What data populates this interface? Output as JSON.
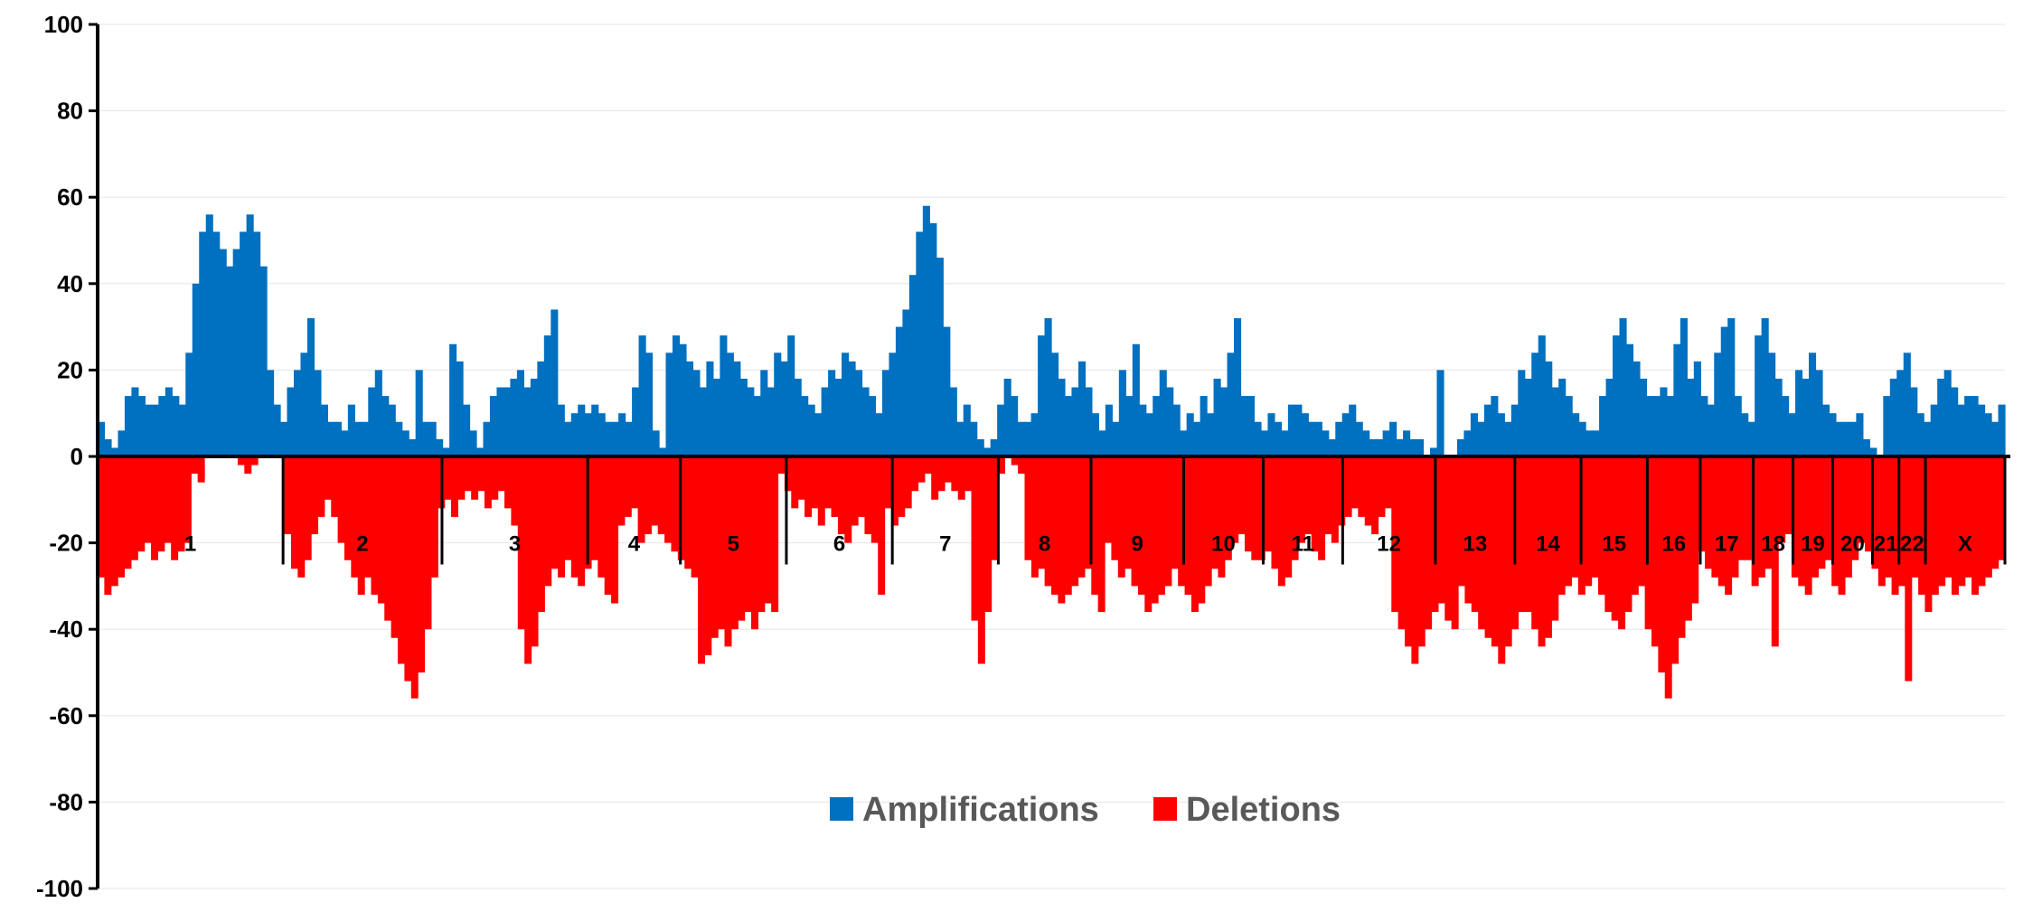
{
  "chart_data": {
    "type": "bar",
    "title": "",
    "xlabel": "",
    "ylabel": "",
    "ylim": [
      -100,
      100
    ],
    "yticks": [
      100,
      80,
      60,
      40,
      20,
      0,
      -20,
      -40,
      -60,
      -80,
      -100
    ],
    "grid": true,
    "legend_position": "bottom-center",
    "chromosomes": [
      "1",
      "2",
      "3",
      "4",
      "5",
      "6",
      "7",
      "8",
      "9",
      "10",
      "11",
      "12",
      "13",
      "14",
      "15",
      "16",
      "17",
      "18",
      "19",
      "20",
      "21",
      "22",
      "X"
    ],
    "chromosome_extent": [
      14,
      12,
      11,
      7,
      8,
      8,
      8,
      7,
      7,
      6,
      6,
      7,
      6,
      5,
      5,
      4,
      4,
      3,
      3,
      3,
      2,
      2,
      6
    ],
    "series": [
      {
        "name": "Amplifications",
        "color": "#0070C0",
        "values": [
          [
            8,
            4,
            2,
            6,
            14,
            16,
            14,
            12,
            12,
            14,
            16,
            14,
            12,
            24
          ],
          [
            40,
            52,
            56,
            52,
            48,
            44,
            48,
            52,
            56,
            52,
            44,
            20,
            12,
            8
          ],
          [
            16,
            20,
            24,
            32,
            20,
            12,
            8,
            8,
            6,
            12,
            8,
            8
          ],
          [
            16,
            20,
            14,
            12,
            8,
            6,
            4,
            20,
            8,
            8,
            4,
            2
          ],
          [
            26,
            22,
            12,
            6,
            2,
            8,
            14,
            16,
            16,
            18,
            20,
            16
          ],
          [
            18,
            22,
            28,
            34,
            12,
            8,
            10
          ],
          [
            12,
            10,
            12,
            10,
            8,
            8,
            10
          ],
          [
            8,
            16,
            28,
            24,
            6,
            2
          ],
          [
            24,
            28,
            26,
            22,
            20,
            16,
            22,
            18
          ],
          [
            28,
            24,
            22,
            18,
            16,
            14,
            20,
            16
          ],
          [
            24,
            22,
            28,
            18,
            14,
            12,
            10,
            16
          ],
          [
            20,
            18,
            24,
            22,
            20,
            16,
            14,
            10
          ],
          [
            20,
            24,
            30,
            34,
            42,
            52,
            58,
            54,
            46,
            30,
            16,
            8
          ],
          [
            12,
            8,
            4,
            2,
            4,
            12,
            18,
            14,
            8,
            8,
            10
          ],
          [
            28,
            32,
            24,
            18,
            14,
            16,
            22,
            16,
            10,
            6,
            12,
            8
          ],
          [
            20,
            14,
            26,
            12,
            10,
            14,
            20,
            16,
            12,
            6,
            10,
            8
          ],
          [
            14,
            10,
            18,
            16,
            24,
            32,
            14,
            14,
            8,
            6,
            10,
            8,
            6,
            12
          ],
          [
            12,
            10,
            8,
            8,
            6,
            4,
            8,
            10,
            12,
            8,
            6,
            4
          ],
          [
            4,
            6,
            8,
            4,
            6,
            4,
            4,
            0,
            2,
            20,
            0,
            0
          ],
          [
            4,
            6,
            10,
            8,
            12,
            14,
            10,
            8,
            12,
            20,
            18
          ],
          [
            24,
            28,
            22,
            16,
            18,
            14,
            10,
            8,
            6,
            6
          ],
          [
            14,
            18,
            28,
            32,
            26,
            22,
            18,
            14,
            14
          ],
          [
            16,
            14,
            26,
            32,
            18,
            22,
            14,
            12
          ],
          [
            24,
            30,
            32,
            14,
            10,
            8
          ],
          [
            28,
            32,
            24,
            18,
            14,
            10
          ],
          [
            20,
            18,
            24,
            20,
            12,
            10,
            8
          ],
          [
            8,
            8,
            10,
            4,
            2,
            0
          ],
          [
            14,
            18,
            20,
            24,
            16,
            10,
            8,
            12
          ],
          [
            18,
            20,
            16,
            12,
            14,
            14,
            12,
            10,
            8,
            12
          ]
        ]
      },
      {
        "name": "Deletions",
        "color": "#FF0000",
        "values": [
          [
            -28,
            -32,
            -30,
            -28,
            -26,
            -24,
            -22,
            -20,
            -24,
            -22,
            -20,
            -24,
            -22,
            -20
          ],
          [
            -4,
            -6,
            0,
            0,
            0,
            0,
            0,
            -2,
            -4,
            -2,
            0,
            0,
            0,
            0
          ],
          [
            -18,
            -26,
            -28,
            -24,
            -18,
            -14,
            -10,
            -14,
            -20,
            -24,
            -28,
            -32
          ],
          [
            -28,
            -32,
            -34,
            -38,
            -42,
            -48,
            -52,
            -56,
            -50,
            -40,
            -28
          ],
          [
            -12,
            -10,
            -14,
            -10,
            -8,
            -10,
            -8,
            -12,
            -10,
            -8,
            -12,
            -16
          ],
          [
            -40,
            -48,
            -44,
            -36,
            -30,
            -26,
            -28,
            -24
          ],
          [
            -28,
            -30,
            -26,
            -24,
            -28,
            -32,
            -34
          ],
          [
            -16,
            -14,
            -12,
            -20,
            -18,
            -16,
            -18,
            -20,
            -22,
            -24,
            -26,
            -28
          ],
          [
            -48,
            -46,
            -42,
            -40,
            -44,
            -40,
            -38,
            -36,
            -40,
            -36,
            -34,
            -36
          ],
          [
            -4,
            -8,
            -12,
            -10,
            -14,
            -12,
            -16,
            -12,
            -14,
            -18,
            -20,
            -16,
            -14,
            -18,
            -20,
            -32
          ],
          [
            -12,
            -16,
            -14,
            -12,
            -8,
            -6,
            -4,
            -10,
            -8,
            -6,
            -8,
            -10,
            -8
          ],
          [
            -38,
            -48,
            -36,
            -24,
            -4,
            0,
            -2,
            -4
          ],
          [
            -24,
            -28,
            -26,
            -30,
            -32,
            -34,
            -32,
            -30,
            -28,
            -26,
            -32,
            -36
          ],
          [
            -20,
            -24,
            -28,
            -26,
            -30,
            -32,
            -36,
            -34,
            -32,
            -30
          ],
          [
            -26,
            -30,
            -32,
            -36,
            -34,
            -30,
            -26,
            -28,
            -24,
            -20,
            -18,
            -22,
            -24
          ],
          [
            -24,
            -22,
            -26,
            -30,
            -28,
            -24,
            -20,
            -18,
            -22,
            -24
          ],
          [
            -18,
            -20,
            -16,
            -14,
            -12,
            -14,
            -16,
            -18,
            -14,
            -12
          ],
          [
            -36,
            -40,
            -44,
            -48,
            -44,
            -40,
            -36,
            -34,
            -38,
            -40
          ],
          [
            -30,
            -34,
            -36,
            -40,
            -42,
            -44,
            -48,
            -44,
            -40,
            -36
          ],
          [
            -36,
            -40,
            -44,
            -42,
            -38,
            -32,
            -30,
            -28,
            -32,
            -30
          ],
          [
            -28,
            -32,
            -36,
            -38,
            -40,
            -36,
            -32,
            -30
          ],
          [
            -40,
            -44,
            -50,
            -56,
            -48,
            -42,
            -38,
            -34
          ],
          [
            -22,
            -26,
            -28,
            -30,
            -32,
            -28,
            -24
          ],
          [
            -24,
            -30,
            -28,
            -26,
            -44,
            -20,
            -18
          ],
          [
            -28,
            -30,
            -32,
            -28,
            -26,
            -24
          ],
          [
            -30,
            -32,
            -28,
            -24,
            -20,
            -22,
            -26,
            -30
          ],
          [
            -28,
            -32,
            -30,
            -52,
            -28,
            -32
          ],
          [
            -36,
            -32,
            -30,
            -28,
            -32,
            -30,
            -28,
            -32,
            -30,
            -28,
            -26,
            -24
          ]
        ]
      }
    ]
  }
}
